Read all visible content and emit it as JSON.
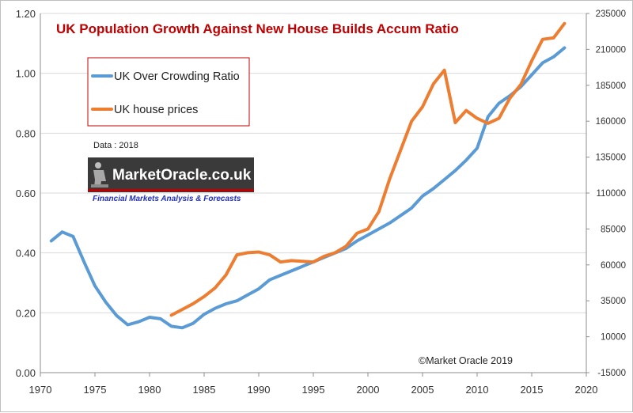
{
  "chart_data": {
    "type": "line",
    "title": "UK  Population Growth Against New House Builds Accum Ratio",
    "note": "Data : 2018",
    "copyright": "©Market Oracle 2019",
    "logo": {
      "name": "MarketOracle.co.uk",
      "tagline": "Financial Markets Analysis & Forecasts"
    },
    "legend_position": "top-left",
    "grid": "horizontal",
    "x_axis": {
      "min": 1970,
      "max": 2020,
      "ticks": [
        "1970",
        "1975",
        "1980",
        "1985",
        "1990",
        "1995",
        "2000",
        "2005",
        "2010",
        "2015",
        "2020"
      ]
    },
    "y_left": {
      "min": 0,
      "max": 1.2,
      "ticks": [
        "0.00",
        "0.20",
        "0.40",
        "0.60",
        "0.80",
        "1.00",
        "1.20"
      ]
    },
    "y_right": {
      "min": -15000,
      "max": 235000,
      "ticks": [
        "-15000",
        "10000",
        "35000",
        "60000",
        "85000",
        "110000",
        "135000",
        "160000",
        "185000",
        "210000",
        "235000"
      ]
    },
    "series": [
      {
        "name": "UK Over Crowding Ratio",
        "axis": "left",
        "color": "#5b9bd5",
        "x": [
          1971,
          1972,
          1973,
          1974,
          1975,
          1976,
          1977,
          1978,
          1979,
          1980,
          1981,
          1982,
          1983,
          1984,
          1985,
          1986,
          1987,
          1988,
          1989,
          1990,
          1991,
          1992,
          1993,
          1994,
          1995,
          1996,
          1997,
          1998,
          1999,
          2000,
          2001,
          2002,
          2003,
          2004,
          2005,
          2006,
          2007,
          2008,
          2009,
          2010,
          2011,
          2012,
          2013,
          2014,
          2015,
          2016,
          2017,
          2018
        ],
        "values": [
          0.44,
          0.47,
          0.455,
          0.37,
          0.29,
          0.235,
          0.19,
          0.16,
          0.17,
          0.185,
          0.18,
          0.155,
          0.15,
          0.165,
          0.195,
          0.215,
          0.23,
          0.24,
          0.26,
          0.28,
          0.31,
          0.325,
          0.34,
          0.355,
          0.37,
          0.385,
          0.4,
          0.415,
          0.44,
          0.46,
          0.48,
          0.5,
          0.525,
          0.55,
          0.59,
          0.615,
          0.645,
          0.675,
          0.71,
          0.75,
          0.855,
          0.9,
          0.925,
          0.955,
          0.995,
          1.035,
          1.055,
          1.085
        ]
      },
      {
        "name": "UK house prices",
        "axis": "right",
        "color": "#ed7d31",
        "x": [
          1982,
          1983,
          1984,
          1985,
          1986,
          1987,
          1988,
          1989,
          1990,
          1991,
          1992,
          1993,
          1994,
          1995,
          1996,
          1997,
          1998,
          1999,
          2000,
          2001,
          2002,
          2003,
          2004,
          2005,
          2006,
          2007,
          2008,
          2009,
          2010,
          2011,
          2012,
          2013,
          2014,
          2015,
          2016,
          2017,
          2018
        ],
        "values": [
          25000,
          29000,
          33000,
          38000,
          44000,
          53000,
          67000,
          68500,
          69000,
          67000,
          62000,
          63000,
          62500,
          62000,
          66000,
          68500,
          73000,
          82000,
          85000,
          97000,
          120000,
          140000,
          160000,
          170000,
          186000,
          195500,
          159000,
          167500,
          162000,
          158500,
          162000,
          176000,
          185500,
          202000,
          217000,
          218000,
          228000
        ]
      }
    ]
  }
}
